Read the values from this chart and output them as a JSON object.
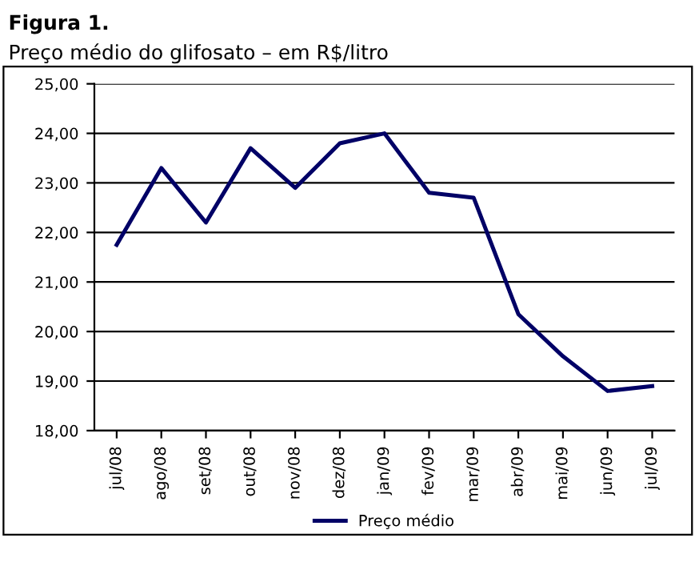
{
  "chart_data": {
    "type": "line",
    "title": "Figura 1.",
    "subtitle": "Preço médio do glifosato – em R$/litro",
    "categories": [
      "jul/08",
      "ago/08",
      "set/08",
      "out/08",
      "nov/08",
      "dez/08",
      "jan/09",
      "fev/09",
      "mar/09",
      "abr/09",
      "mai/09",
      "jun/09",
      "jul/09"
    ],
    "series": [
      {
        "name": "Preço médio",
        "color": "#000066",
        "values": [
          21.75,
          23.3,
          22.2,
          23.7,
          22.9,
          23.8,
          24.0,
          22.8,
          22.7,
          20.35,
          19.5,
          18.8,
          18.9
        ]
      }
    ],
    "ylim": [
      18,
      25
    ],
    "yticks": [
      {
        "value": 18,
        "label": "18,00"
      },
      {
        "value": 19,
        "label": "19,00"
      },
      {
        "value": 20,
        "label": "20,00"
      },
      {
        "value": 21,
        "label": "21,00"
      },
      {
        "value": 22,
        "label": "22,00"
      },
      {
        "value": 23,
        "label": "23,00"
      },
      {
        "value": 24,
        "label": "24,00"
      },
      {
        "value": 25,
        "label": "25,00"
      }
    ],
    "grid": "y",
    "legend": "bottom",
    "marker": "none",
    "line_style": "solid"
  }
}
